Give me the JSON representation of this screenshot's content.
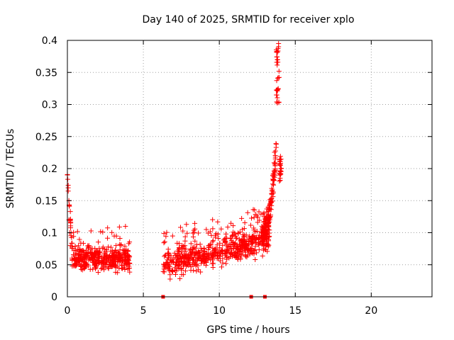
{
  "chart_data": {
    "type": "scatter",
    "title": "Day 140 of 2025, SRMTID for receiver xplo",
    "xlabel": "GPS time / hours",
    "ylabel": "SRMTID / TECUs",
    "xlim": [
      0,
      24
    ],
    "ylim": [
      0,
      0.4
    ],
    "xticks": [
      0,
      5,
      10,
      15,
      20
    ],
    "xtick_labels": [
      "0",
      "5",
      "10",
      "15",
      "20"
    ],
    "yticks": [
      0,
      0.05,
      0.1,
      0.15,
      0.2,
      0.25,
      0.3,
      0.35,
      0.4
    ],
    "ytick_labels": [
      "0",
      "0.05",
      "0.1",
      "0.15",
      "0.2",
      "0.25",
      "0.3",
      "0.35",
      "0.4"
    ],
    "grid": true,
    "marker": "+",
    "color": "#ff0000",
    "series": [
      {
        "name": "SRMTID",
        "segments": [
          {
            "t_start": 0.0,
            "t_end": 0.3,
            "points_approx": [
              [
                0.0,
                0.19
              ],
              [
                0.05,
                0.17
              ],
              [
                0.1,
                0.15
              ],
              [
                0.1,
                0.12
              ],
              [
                0.15,
                0.1
              ],
              [
                0.2,
                0.08
              ]
            ]
          },
          {
            "t_start": 0.3,
            "t_end": 4.1,
            "typical_range": [
              0.02,
              0.11
            ],
            "center": 0.06
          },
          {
            "t_start": 6.3,
            "t_end": 13.3,
            "typical_range": [
              0.02,
              0.14
            ],
            "center": 0.07,
            "trend": "gradual rise"
          },
          {
            "t_start": 12.8,
            "t_end": 14.1,
            "trend": "sharp rise",
            "peak": 0.4,
            "end_range": [
              0.18,
              0.22
            ]
          }
        ],
        "zero_points_x": [
          6.3,
          12.1,
          13.0
        ]
      }
    ]
  }
}
